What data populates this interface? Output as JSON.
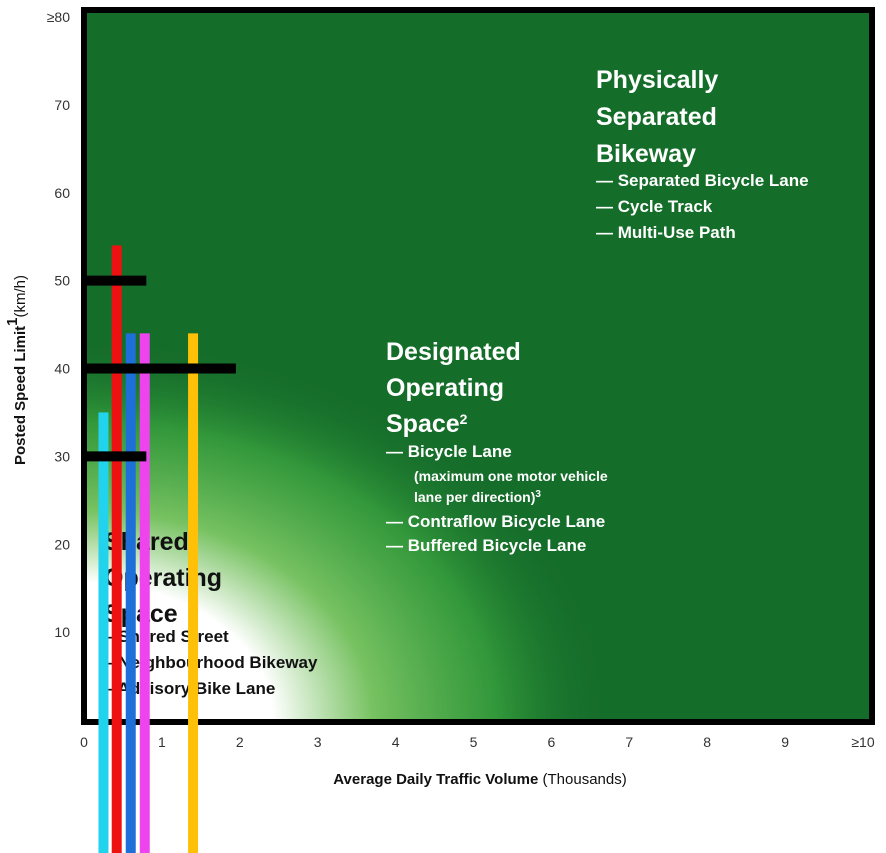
{
  "chart_data": {
    "type": "area",
    "title": "",
    "xlabel": "Average Daily Traffic Volume",
    "xlabel_unit": "(Thousands)",
    "ylabel": "Posted Speed Limit",
    "ylabel_sup": "1",
    "ylabel_unit": "(km/h)",
    "xlim": [
      0,
      10
    ],
    "ylim": [
      0,
      80
    ],
    "x_ticks": [
      "0",
      "1",
      "2",
      "3",
      "4",
      "5",
      "6",
      "7",
      "8",
      "9",
      "≥10"
    ],
    "y_ticks": [
      "10",
      "20",
      "30",
      "40",
      "50",
      "60",
      "70",
      "≥80"
    ],
    "y_tick_values": [
      10,
      20,
      30,
      40,
      50,
      60,
      70,
      80
    ],
    "zones": [
      {
        "name": "shared",
        "title_lines": [
          "Shared",
          "Operating",
          "Space"
        ],
        "title_sup": "",
        "items": [
          "– Shared Street",
          "– Neighbourhood Bikeway",
          "– Advisory Bike Lane"
        ],
        "text_color": "#111111"
      },
      {
        "name": "designated",
        "title_lines": [
          "Designated",
          "Operating",
          "Space"
        ],
        "title_sup": "2",
        "items": [
          "— Bicycle Lane",
          "(maximum one motor vehicle",
          "lane per direction)",
          "— Contraflow Bicycle Lane",
          "— Buffered Bicycle Lane"
        ],
        "note_sup": "3",
        "text_color": "#ffffff"
      },
      {
        "name": "separated",
        "title_lines": [
          "Physically",
          "Separated",
          "Bikeway"
        ],
        "title_sup": "",
        "items": [
          "— Separated Bicycle Lane",
          "— Cycle Track",
          "— Multi-Use Path"
        ],
        "text_color": "#ffffff"
      }
    ],
    "thresholds": [
      {
        "speed": 50,
        "x_end": 0.8
      },
      {
        "speed": 40,
        "x_end": 1.95
      },
      {
        "speed": 30,
        "x_end": 0.8
      }
    ],
    "bars": [
      {
        "x": 0.25,
        "speed": 35,
        "color": "#22d3ee"
      },
      {
        "x": 0.42,
        "speed": 54,
        "color": "#ee1111"
      },
      {
        "x": 0.6,
        "speed": 44,
        "color": "#1f6fd8"
      },
      {
        "x": 0.78,
        "speed": 44,
        "color": "#ee44ee"
      },
      {
        "x": 1.4,
        "speed": 44,
        "color": "#ffc107"
      }
    ],
    "colors": {
      "frame": "#000000",
      "dark_green": "#156d2a",
      "mid_green": "#3aa33f",
      "light_green": "#7cc664",
      "white_zone": "#ffffff"
    }
  }
}
